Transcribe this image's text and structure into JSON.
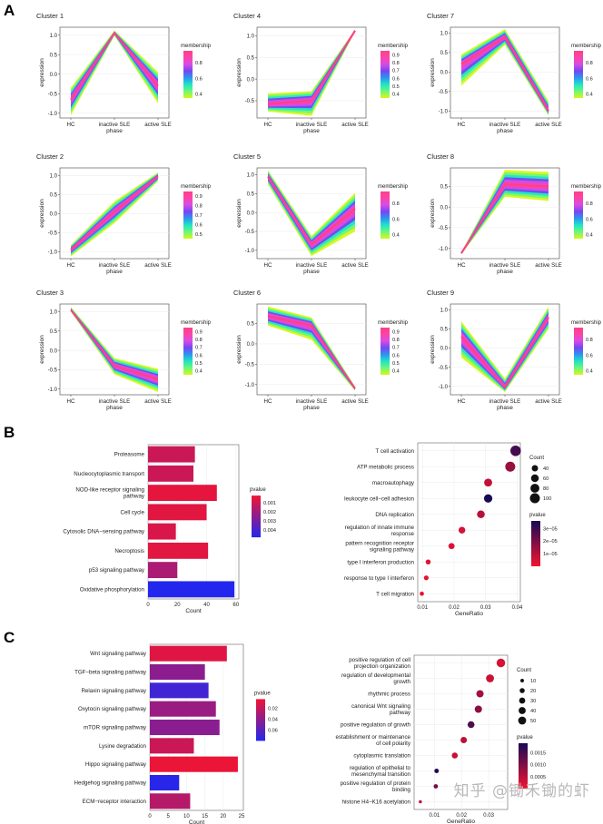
{
  "panels": {
    "a": "A",
    "b": "B",
    "c": "C"
  },
  "palette": {
    "membership": [
      "#d7f716",
      "#6ef779",
      "#1fe6c4",
      "#2d95f0",
      "#7447f2",
      "#d84be6",
      "#fb44a7",
      "#ff3f8b"
    ],
    "bar_low": "#f31431",
    "bar_high": "#2327ee",
    "dot_low": "#f31431",
    "dot_high": "#170a55",
    "panel_bg": "#ffffff",
    "grid": "#ebebeb"
  },
  "watermark": "知乎 @锄禾锄的虾",
  "chart_data": [
    {
      "type": "line",
      "id": "c1",
      "title": "Cluster 1",
      "categories": [
        "HC",
        "inactive SLE",
        "active SLE"
      ],
      "xlabel": "phase",
      "ylabel": "expression",
      "yticks": [
        -1.0,
        -0.5,
        0.0,
        0.5,
        1.0
      ],
      "ylim": [
        -1.12,
        1.2
      ],
      "legend_title": "membership",
      "legend_ticks": [
        "0.8",
        "0.6",
        "0.4"
      ],
      "legend_range": [
        0.35,
        0.95
      ],
      "band": {
        "upper": [
          -0.35,
          1.12,
          0.05
        ],
        "lower": [
          -1.05,
          0.98,
          -0.75
        ]
      },
      "core": [
        -0.65,
        1.05,
        -0.3
      ]
    },
    {
      "type": "line",
      "id": "c4",
      "title": "Cluster 4",
      "categories": [
        "HC",
        "inactive SLE",
        "active SLE"
      ],
      "xlabel": "phase",
      "ylabel": "expression",
      "yticks": [
        -0.5,
        0.0,
        0.5,
        1.0
      ],
      "ylim": [
        -0.9,
        1.2
      ],
      "legend_title": "membership",
      "legend_ticks": [
        "0.9",
        "0.8",
        "0.7",
        "0.6",
        "0.5",
        "0.4"
      ],
      "legend_range": [
        0.35,
        0.95
      ],
      "band": {
        "upper": [
          -0.33,
          -0.28,
          1.15
        ],
        "lower": [
          -0.75,
          -0.85,
          1.1
        ]
      },
      "core": [
        -0.58,
        -0.5,
        1.12
      ]
    },
    {
      "type": "line",
      "id": "c7",
      "title": "Cluster 7",
      "categories": [
        "HC",
        "inactive SLE",
        "active SLE"
      ],
      "xlabel": "phase",
      "ylabel": "expression",
      "yticks": [
        -1.0,
        -0.5,
        0.0,
        0.5,
        1.0
      ],
      "ylim": [
        -1.18,
        1.15
      ],
      "legend_title": "membership",
      "legend_ticks": [
        "0.8",
        "0.6",
        "0.4"
      ],
      "legend_range": [
        0.35,
        0.95
      ],
      "band": {
        "upper": [
          0.45,
          1.1,
          -0.75
        ],
        "lower": [
          -0.35,
          0.7,
          -1.12
        ]
      },
      "core": [
        0.2,
        0.9,
        -1.0
      ]
    },
    {
      "type": "line",
      "id": "c2",
      "title": "Cluster 2",
      "categories": [
        "HC",
        "inactive SLE",
        "active SLE"
      ],
      "xlabel": "phase",
      "ylabel": "expression",
      "yticks": [
        -1.0,
        -0.5,
        0.0,
        0.5,
        1.0
      ],
      "ylim": [
        -1.18,
        1.2
      ],
      "legend_title": "membership",
      "legend_ticks": [
        "0.9",
        "0.8",
        "0.7",
        "0.6",
        "0.5"
      ],
      "legend_range": [
        0.45,
        0.95
      ],
      "band": {
        "upper": [
          -0.82,
          0.32,
          1.08
        ],
        "lower": [
          -1.12,
          -0.25,
          0.85
        ]
      },
      "core": [
        -0.95,
        0.05,
        0.98
      ]
    },
    {
      "type": "line",
      "id": "c5",
      "title": "Cluster 5",
      "categories": [
        "HC",
        "inactive SLE",
        "active SLE"
      ],
      "xlabel": "phase",
      "ylabel": "expression",
      "yticks": [
        -1.0,
        -0.5,
        0.0,
        0.5,
        1.0
      ],
      "ylim": [
        -1.22,
        1.18
      ],
      "legend_title": "membership",
      "legend_ticks": [
        "0.8",
        "0.6",
        "0.4"
      ],
      "legend_range": [
        0.35,
        0.95
      ],
      "band": {
        "upper": [
          1.12,
          -0.62,
          0.52
        ],
        "lower": [
          0.75,
          -1.15,
          -0.5
        ]
      },
      "core": [
        0.95,
        -0.85,
        0.1
      ]
    },
    {
      "type": "line",
      "id": "c8",
      "title": "Cluster 8",
      "categories": [
        "HC",
        "inactive SLE",
        "active SLE"
      ],
      "xlabel": "phase",
      "ylabel": "expression",
      "yticks": [
        -1.0,
        -0.5,
        0.0,
        0.5
      ],
      "ylim": [
        -1.25,
        0.95
      ],
      "legend_title": "membership",
      "legend_ticks": [
        "0.8",
        "0.6",
        "0.4"
      ],
      "legend_range": [
        0.35,
        0.95
      ],
      "band": {
        "upper": [
          -1.1,
          0.9,
          0.85
        ],
        "lower": [
          -1.15,
          0.25,
          0.15
        ]
      },
      "core": [
        -1.12,
        0.55,
        0.5
      ]
    },
    {
      "type": "line",
      "id": "c3",
      "title": "Cluster 3",
      "categories": [
        "HC",
        "inactive SLE",
        "active SLE"
      ],
      "xlabel": "phase",
      "ylabel": "expression",
      "yticks": [
        -1.0,
        -0.5,
        0.0,
        0.5,
        1.0
      ],
      "ylim": [
        -1.15,
        1.2
      ],
      "legend_title": "membership",
      "legend_ticks": [
        "0.9",
        "0.8",
        "0.7",
        "0.6",
        "0.5",
        "0.4"
      ],
      "legend_range": [
        0.35,
        0.95
      ],
      "band": {
        "upper": [
          1.12,
          -0.2,
          -0.48
        ],
        "lower": [
          1.0,
          -0.62,
          -1.08
        ]
      },
      "core": [
        1.05,
        -0.4,
        -0.75
      ]
    },
    {
      "type": "line",
      "id": "c6",
      "title": "Cluster 6",
      "categories": [
        "HC",
        "inactive SLE",
        "active SLE"
      ],
      "xlabel": "phase",
      "ylabel": "expression",
      "yticks": [
        -1.0,
        -0.5,
        0.0,
        0.5
      ],
      "ylim": [
        -1.25,
        0.98
      ],
      "legend_title": "membership",
      "legend_ticks": [
        "0.9",
        "0.8",
        "0.7",
        "0.6",
        "0.5",
        "0.4"
      ],
      "legend_range": [
        0.35,
        0.95
      ],
      "band": {
        "upper": [
          0.92,
          0.65,
          -1.05
        ],
        "lower": [
          0.45,
          0.1,
          -1.15
        ]
      },
      "core": [
        0.68,
        0.45,
        -1.1
      ]
    },
    {
      "type": "line",
      "id": "c9",
      "title": "Cluster 9",
      "categories": [
        "HC",
        "inactive SLE",
        "active SLE"
      ],
      "xlabel": "phase",
      "ylabel": "expression",
      "yticks": [
        -1.0,
        -0.5,
        0.0,
        0.5,
        1.0
      ],
      "ylim": [
        -1.22,
        1.15
      ],
      "legend_title": "membership",
      "legend_ticks": [
        "0.8",
        "0.6",
        "0.4"
      ],
      "legend_range": [
        0.35,
        0.95
      ],
      "band": {
        "upper": [
          0.7,
          -0.8,
          1.08
        ],
        "lower": [
          -0.25,
          -1.15,
          0.5
        ]
      },
      "core": [
        0.3,
        -1.02,
        0.8
      ]
    },
    {
      "type": "bar",
      "id": "kegg1",
      "orientation": "horizontal",
      "categories": [
        "Proteasome",
        "Nucleocytoplasmic transport",
        "NOD-like receptor signaling pathway",
        "Cell cycle",
        "Cytosolic DNA−sensing pathway",
        "Necroptosis",
        "p53 signaling pathway",
        "Oxidative phosphorylation"
      ],
      "values": [
        32,
        31,
        47,
        40,
        19,
        41,
        20,
        59
      ],
      "pvalue": [
        0.0011,
        0.0011,
        0.0005,
        0.0006,
        0.0008,
        0.0006,
        0.0018,
        0.0052
      ],
      "prange": [
        0.0002,
        0.0048
      ],
      "xlabel": "Count",
      "xlim": [
        0,
        62
      ],
      "xticks": [
        0,
        20,
        40,
        60
      ],
      "legend_title": "pvalue",
      "legend_ticks": [
        "0.001",
        "0.002",
        "0.003",
        "0.004"
      ]
    },
    {
      "type": "scatter",
      "id": "go1",
      "categories": [
        "T cell activation",
        "ATP metabolic process",
        "macroautophagy",
        "leukocyte cell−cell adhesion",
        "DNA replication",
        "regulation of innate immune response",
        "pattern recognition receptor signaling pathway",
        "type I interferon production",
        "response to type I interferon",
        "T cell migration"
      ],
      "generatio": [
        0.0395,
        0.0378,
        0.0308,
        0.0308,
        0.0285,
        0.0225,
        0.0192,
        0.0118,
        0.0112,
        0.0098
      ],
      "count": [
        110,
        100,
        65,
        70,
        60,
        45,
        38,
        25,
        22,
        18
      ],
      "pvalue": [
        2.9e-05,
        1.5e-05,
        8e-06,
        3.6e-05,
        1e-05,
        5e-06,
        4e-06,
        3e-06,
        3e-06,
        2e-06
      ],
      "prange": [
        0,
        3.6e-05
      ],
      "xlabel": "GeneRatio",
      "xlim": [
        0.0085,
        0.041
      ],
      "xticks": [
        0.01,
        0.02,
        0.03,
        0.04
      ],
      "size_title": "Count",
      "size_ticks": [
        "40",
        "60",
        "80",
        "100"
      ],
      "size_values": [
        40,
        60,
        80,
        100
      ],
      "legend_title": "pvalue",
      "legend_ticks": [
        "3e−05",
        "2e−05",
        "1e−05"
      ],
      "legend_values": [
        3e-05,
        2e-05,
        1e-05
      ]
    },
    {
      "type": "bar",
      "id": "kegg2",
      "orientation": "horizontal",
      "categories": [
        "Wnt signaling pathway",
        "TGF−beta signaling pathway",
        "Relaxin signaling pathway",
        "Oxytocin signaling pathway",
        "mTOR signaling pathway",
        "Lysine degradation",
        "Hippo signaling pathway",
        "Hedgehog signaling pathway",
        "ECM−receptor interaction"
      ],
      "values": [
        21,
        15,
        16,
        18,
        19,
        12,
        24,
        8,
        11
      ],
      "pvalue": [
        0.0105,
        0.041,
        0.069,
        0.036,
        0.042,
        0.018,
        0.006,
        0.078,
        0.026
      ],
      "prange": [
        0.003,
        0.08
      ],
      "xlabel": "Count",
      "xlim": [
        0,
        25.5
      ],
      "xticks": [
        0,
        5,
        10,
        15,
        20,
        25
      ],
      "legend_title": "pvalue",
      "legend_ticks": [
        "0.06",
        "0.04",
        "0.02"
      ],
      "legend_values": [
        0.06,
        0.04,
        0.02
      ]
    },
    {
      "type": "scatter",
      "id": "go2",
      "categories": [
        "positive regulation of cell projection organization",
        "regulation of developmental growth",
        "rhythmic process",
        "canonical Wnt signaling pathway",
        "positive regulation of growth",
        "establishment or maintenance of cell polarity",
        "cytoplasmic translation",
        "regulation of epithelial to mesenchymal transition",
        "positive regulation of protein binding",
        "histone H4−K16 acetylation"
      ],
      "generatio": [
        0.0345,
        0.0305,
        0.0268,
        0.0262,
        0.0235,
        0.0208,
        0.0175,
        0.0108,
        0.0105,
        0.0048
      ],
      "count": [
        58,
        50,
        42,
        42,
        37,
        32,
        28,
        16,
        15,
        8
      ],
      "pvalue": [
        0.00025,
        0.00035,
        0.0007,
        0.0009,
        0.0014,
        0.0005,
        0.0004,
        0.0018,
        0.0011,
        0.0004
      ],
      "prange": [
        0,
        0.0019
      ],
      "xlabel": "GeneRatio",
      "xlim": [
        0.0025,
        0.037
      ],
      "xticks": [
        0.01,
        0.02,
        0.03
      ],
      "size_title": "Count",
      "size_ticks": [
        "10",
        "20",
        "30",
        "40",
        "50"
      ],
      "size_values": [
        10,
        20,
        30,
        40,
        50
      ],
      "legend_title": "pvalue",
      "legend_ticks": [
        "0.0015",
        "0.0010",
        "0.0005"
      ],
      "legend_values": [
        0.0015,
        0.001,
        0.0005
      ]
    }
  ]
}
